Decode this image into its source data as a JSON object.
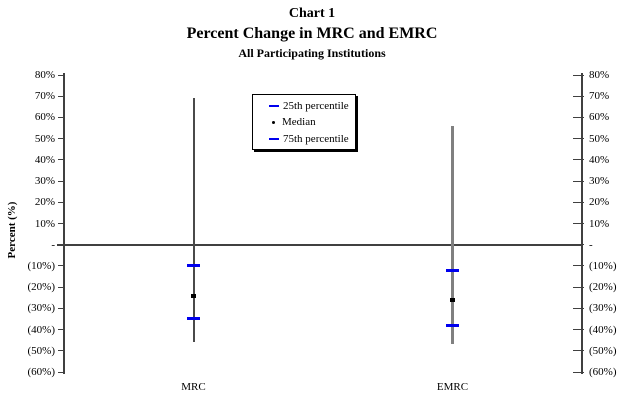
{
  "page": {
    "background": "#ffffff"
  },
  "chart_data": {
    "type": "scatter",
    "variant": "high-low range lines with percentile markers (Excel-style)",
    "titles": {
      "line1": "Chart 1",
      "line2": "Percent Change in MRC and EMRC",
      "line3": "All Participating Institutions"
    },
    "ylabel": "Percent (%)",
    "ylim": [
      -60,
      80
    ],
    "grid": false,
    "legend_position": "upper middle-left inside plot",
    "yticks": [
      {
        "value": 80,
        "label": "80%"
      },
      {
        "value": 70,
        "label": "70%"
      },
      {
        "value": 60,
        "label": "60%"
      },
      {
        "value": 50,
        "label": "50%"
      },
      {
        "value": 40,
        "label": "40%"
      },
      {
        "value": 30,
        "label": "30%"
      },
      {
        "value": 20,
        "label": "20%"
      },
      {
        "value": 10,
        "label": "10%"
      },
      {
        "value": 0,
        "label": "-"
      },
      {
        "value": -10,
        "label": "(10%)"
      },
      {
        "value": -20,
        "label": "(20%)"
      },
      {
        "value": -30,
        "label": "(30%)"
      },
      {
        "value": -40,
        "label": "(40%)"
      },
      {
        "value": -50,
        "label": "(50%)"
      },
      {
        "value": -60,
        "label": "(60%)"
      }
    ],
    "categories": [
      "MRC",
      "EMRC"
    ],
    "series": [
      {
        "name": "MRC",
        "range_max": 69,
        "range_min": -46,
        "p75": -10,
        "median": -24,
        "p25": -35,
        "line_color": "#4a4a4a",
        "line_width": 2
      },
      {
        "name": "EMRC",
        "range_max": 56,
        "range_min": -47,
        "p75": -12,
        "median": -26,
        "p25": -38,
        "line_color": "#808080",
        "line_width": 3
      }
    ],
    "legend": [
      {
        "label": "25th percentile",
        "marker": "dash",
        "color": "#0000ee"
      },
      {
        "label": "Median",
        "marker": "dot",
        "color": "#000000"
      },
      {
        "label": "75th percentile",
        "marker": "dash",
        "color": "#0000ee"
      }
    ],
    "colors": {
      "percentile_marker": "#0000ee",
      "median_marker": "#000000",
      "axis": "#404040",
      "zero_line": "#404040",
      "text": "#000000"
    }
  }
}
